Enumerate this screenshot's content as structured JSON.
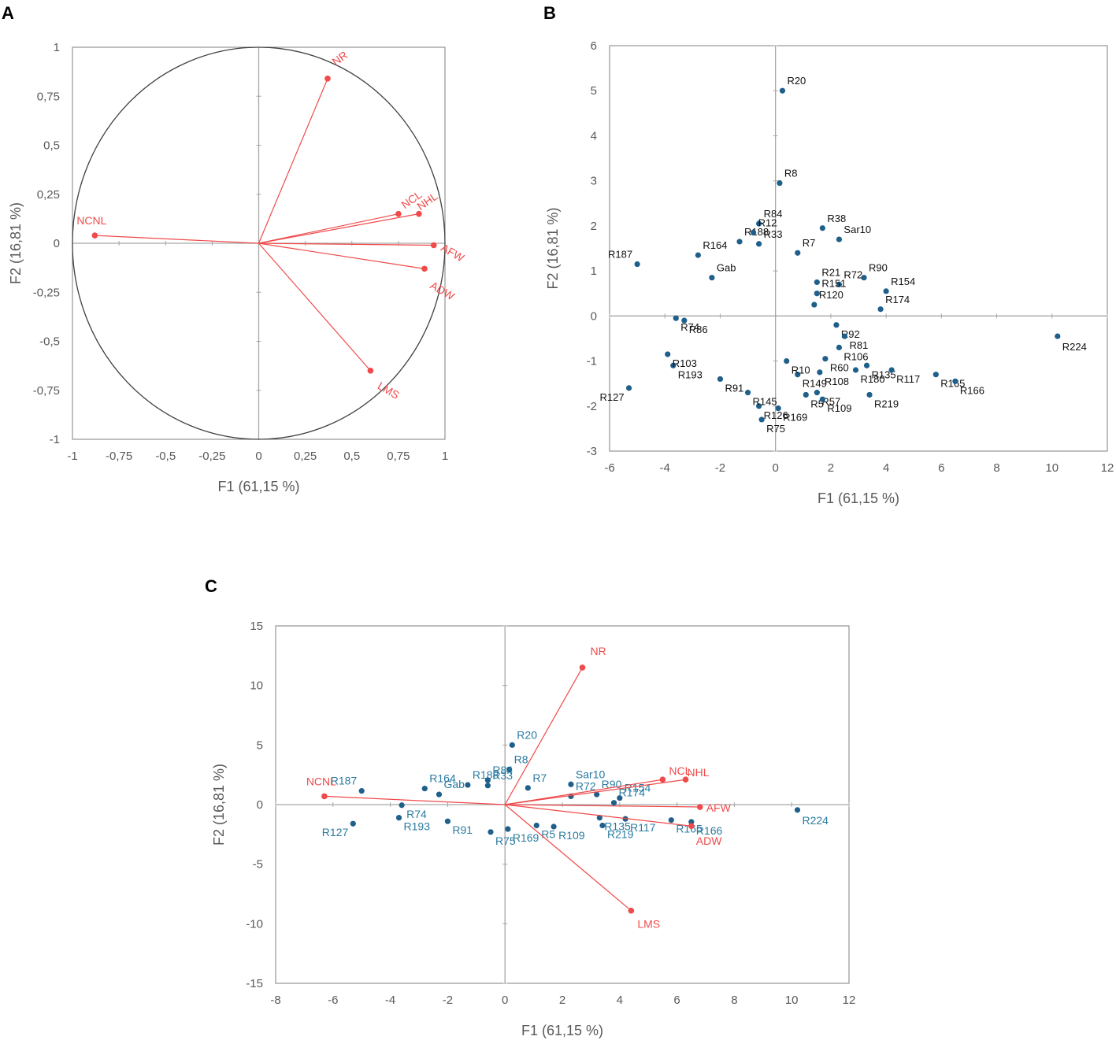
{
  "colors": {
    "variable": "#f04a4a",
    "observation": "#1f5f8b",
    "obs_label_c": "#2a7ba0",
    "frame": "#7f7f7f",
    "zero_line": "#a6a6a6",
    "circle": "#404040"
  },
  "panels": {
    "a": "A",
    "b": "B",
    "c": "C"
  },
  "chart_data": [
    {
      "id": "A",
      "type": "scatter",
      "title": "",
      "xlabel": "F1 (61,15 %)",
      "ylabel": "F2 (16,81 %)",
      "xlim": [
        -1,
        1
      ],
      "ylim": [
        -1,
        1
      ],
      "xticks": [
        "-1",
        "-0,75",
        "-0,5",
        "-0,25",
        "0",
        "0,25",
        "0,5",
        "0,75",
        "1"
      ],
      "yticks": [
        "1",
        "0,75",
        "0,5",
        "0,25",
        "0",
        "-0,25",
        "-0,5",
        "-0,75",
        "-1"
      ],
      "correlation_circle": true,
      "vectors": [
        {
          "name": "NR",
          "x": 0.37,
          "y": 0.84
        },
        {
          "name": "NCL",
          "x": 0.75,
          "y": 0.15
        },
        {
          "name": "NHL",
          "x": 0.86,
          "y": 0.15
        },
        {
          "name": "NCNL",
          "x": -0.88,
          "y": 0.04
        },
        {
          "name": "AFW",
          "x": 0.94,
          "y": -0.01
        },
        {
          "name": "ADW",
          "x": 0.89,
          "y": -0.13
        },
        {
          "name": "LMS",
          "x": 0.6,
          "y": -0.65
        }
      ]
    },
    {
      "id": "B",
      "type": "scatter",
      "title": "",
      "xlabel": "F1 (61,15 %)",
      "ylabel": "F2 (16,81 %)",
      "xlim": [
        -6,
        12
      ],
      "ylim": [
        -3,
        6
      ],
      "xticks": [
        "-6",
        "-4",
        "-2",
        "0",
        "2",
        "4",
        "6",
        "8",
        "10",
        "12"
      ],
      "yticks": [
        "6",
        "5",
        "4",
        "3",
        "2",
        "1",
        "0",
        "-1",
        "-2",
        "-3"
      ],
      "points": [
        {
          "name": "R20",
          "x": 0.25,
          "y": 5.0
        },
        {
          "name": "R8",
          "x": 0.15,
          "y": 2.95
        },
        {
          "name": "R224",
          "x": 10.2,
          "y": -0.45
        },
        {
          "name": "R187",
          "x": -5.0,
          "y": 1.15
        },
        {
          "name": "R127",
          "x": -5.3,
          "y": -1.6
        },
        {
          "name": "R164",
          "x": -2.8,
          "y": 1.35
        },
        {
          "name": "R188",
          "x": -1.3,
          "y": 1.65
        },
        {
          "name": "R84",
          "x": -0.6,
          "y": 2.05
        },
        {
          "name": "R12",
          "x": -0.8,
          "y": 1.85
        },
        {
          "name": "R33",
          "x": -0.6,
          "y": 1.6
        },
        {
          "name": "R38",
          "x": 1.7,
          "y": 1.95
        },
        {
          "name": "R7",
          "x": 0.8,
          "y": 1.4
        },
        {
          "name": "Sar10",
          "x": 2.3,
          "y": 1.7
        },
        {
          "name": "R90",
          "x": 3.2,
          "y": 0.85
        },
        {
          "name": "R154",
          "x": 4.0,
          "y": 0.55
        },
        {
          "name": "R174",
          "x": 3.8,
          "y": 0.15
        },
        {
          "name": "R72",
          "x": 2.3,
          "y": 0.7
        },
        {
          "name": "R21",
          "x": 1.5,
          "y": 0.75
        },
        {
          "name": "R151",
          "x": 1.5,
          "y": 0.5
        },
        {
          "name": "R120",
          "x": 1.4,
          "y": 0.25
        },
        {
          "name": "R92",
          "x": 2.2,
          "y": -0.2
        },
        {
          "name": "R81",
          "x": 2.5,
          "y": -0.45
        },
        {
          "name": "R106",
          "x": 2.3,
          "y": -0.7
        },
        {
          "name": "R60",
          "x": 1.8,
          "y": -0.95
        },
        {
          "name": "R108",
          "x": 1.6,
          "y": -1.25
        },
        {
          "name": "R135",
          "x": 3.3,
          "y": -1.1
        },
        {
          "name": "R180",
          "x": 2.9,
          "y": -1.2
        },
        {
          "name": "R117",
          "x": 4.2,
          "y": -1.2
        },
        {
          "name": "R165",
          "x": 5.8,
          "y": -1.3
        },
        {
          "name": "R166",
          "x": 6.5,
          "y": -1.45
        },
        {
          "name": "R219",
          "x": 3.4,
          "y": -1.75
        },
        {
          "name": "R57",
          "x": 1.5,
          "y": -1.7
        },
        {
          "name": "R5",
          "x": 1.1,
          "y": -1.75
        },
        {
          "name": "R109",
          "x": 1.7,
          "y": -1.85
        },
        {
          "name": "R169",
          "x": 0.1,
          "y": -2.05
        },
        {
          "name": "R149",
          "x": 0.8,
          "y": -1.3
        },
        {
          "name": "R10",
          "x": 0.4,
          "y": -1.0
        },
        {
          "name": "R126",
          "x": -0.6,
          "y": -2.0
        },
        {
          "name": "R75",
          "x": -0.5,
          "y": -2.3
        },
        {
          "name": "R145",
          "x": -1.0,
          "y": -1.7
        },
        {
          "name": "R91",
          "x": -2.0,
          "y": -1.4
        },
        {
          "name": "R193",
          "x": -3.7,
          "y": -1.1
        },
        {
          "name": "R103",
          "x": -3.9,
          "y": -0.85
        },
        {
          "name": "R74",
          "x": -3.6,
          "y": -0.05
        },
        {
          "name": "R86",
          "x": -3.3,
          "y": -0.1
        },
        {
          "name": "Gab",
          "x": -2.3,
          "y": 0.85
        }
      ]
    },
    {
      "id": "C",
      "type": "scatter",
      "title": "",
      "xlabel": "F1 (61,15 %)",
      "ylabel": "F2 (16,81 %)",
      "xlim": [
        -8,
        12
      ],
      "ylim": [
        -15,
        15
      ],
      "xticks": [
        "-8",
        "-6",
        "-4",
        "-2",
        "0",
        "2",
        "4",
        "6",
        "8",
        "10",
        "12"
      ],
      "yticks": [
        "15",
        "10",
        "5",
        "0",
        "-5",
        "-10",
        "-15"
      ],
      "vectors": [
        {
          "name": "NR",
          "x": 2.7,
          "y": 11.5
        },
        {
          "name": "NCL",
          "x": 5.5,
          "y": 2.1
        },
        {
          "name": "NHL",
          "x": 6.3,
          "y": 2.1
        },
        {
          "name": "NCNL",
          "x": -6.3,
          "y": 0.7
        },
        {
          "name": "AFW",
          "x": 6.8,
          "y": -0.2
        },
        {
          "name": "ADW",
          "x": 6.5,
          "y": -1.8
        },
        {
          "name": "LMS",
          "x": 4.4,
          "y": -8.9
        }
      ],
      "points": [
        {
          "name": "R20",
          "x": 0.25,
          "y": 5.0
        },
        {
          "name": "R8",
          "x": 0.15,
          "y": 2.95
        },
        {
          "name": "R224",
          "x": 10.2,
          "y": -0.45
        },
        {
          "name": "R187",
          "x": -5.0,
          "y": 1.15
        },
        {
          "name": "R127",
          "x": -5.3,
          "y": -1.6
        },
        {
          "name": "R164",
          "x": -2.8,
          "y": 1.35
        },
        {
          "name": "R188",
          "x": -1.3,
          "y": 1.65
        },
        {
          "name": "R84",
          "x": -0.6,
          "y": 2.05
        },
        {
          "name": "R33",
          "x": -0.6,
          "y": 1.6
        },
        {
          "name": "R7",
          "x": 0.8,
          "y": 1.4
        },
        {
          "name": "Sar10",
          "x": 2.3,
          "y": 1.7
        },
        {
          "name": "R90",
          "x": 3.2,
          "y": 0.85
        },
        {
          "name": "R154",
          "x": 4.0,
          "y": 0.55
        },
        {
          "name": "R174",
          "x": 3.8,
          "y": 0.15
        },
        {
          "name": "R72",
          "x": 2.3,
          "y": 0.7
        },
        {
          "name": "R117",
          "x": 4.2,
          "y": -1.2
        },
        {
          "name": "R165",
          "x": 5.8,
          "y": -1.3
        },
        {
          "name": "R166",
          "x": 6.5,
          "y": -1.45
        },
        {
          "name": "R219",
          "x": 3.4,
          "y": -1.75
        },
        {
          "name": "R5",
          "x": 1.1,
          "y": -1.75
        },
        {
          "name": "R109",
          "x": 1.7,
          "y": -1.85
        },
        {
          "name": "R169",
          "x": 0.1,
          "y": -2.05
        },
        {
          "name": "R75",
          "x": -0.5,
          "y": -2.3
        },
        {
          "name": "R91",
          "x": -2.0,
          "y": -1.4
        },
        {
          "name": "R193",
          "x": -3.7,
          "y": -1.1
        },
        {
          "name": "R74",
          "x": -3.6,
          "y": -0.05
        },
        {
          "name": "Gab",
          "x": -2.3,
          "y": 0.85
        },
        {
          "name": "R135",
          "x": 3.3,
          "y": -1.1
        }
      ]
    }
  ]
}
